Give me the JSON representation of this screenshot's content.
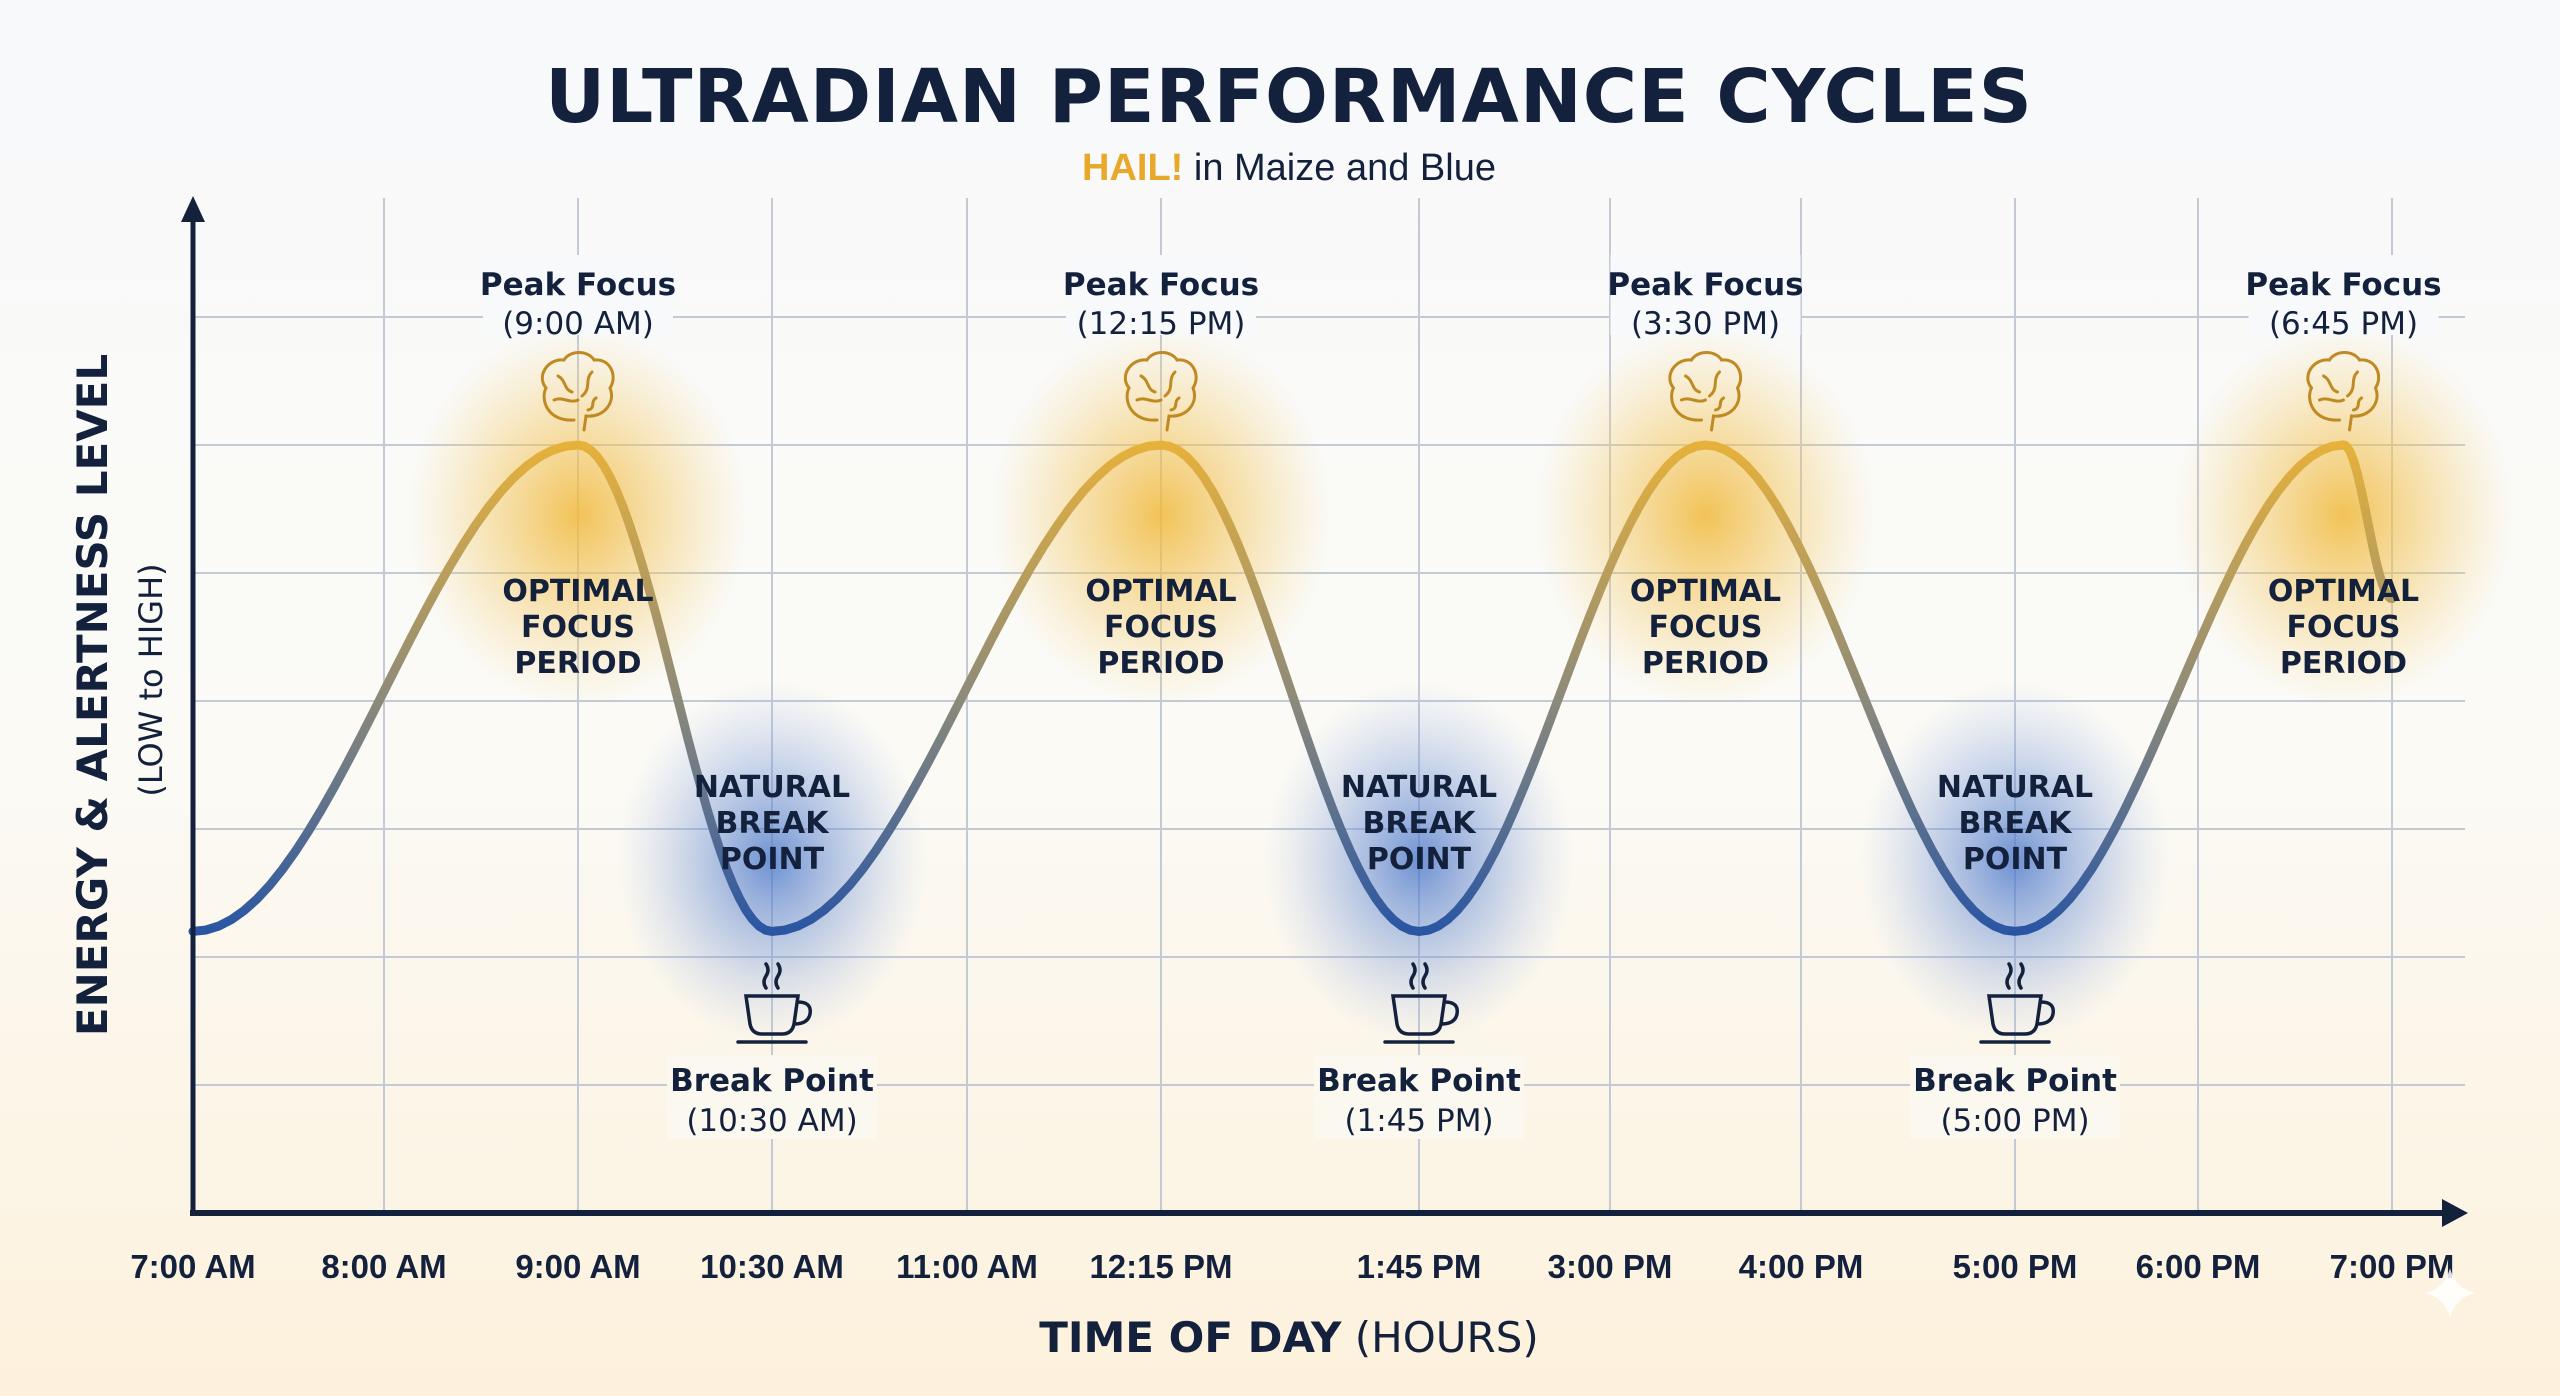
{
  "chart_data": {
    "type": "line",
    "title": "ULTRADIAN PERFORMANCE CYCLES",
    "subtitle": {
      "highlight": "HAIL!",
      "rest": " in Maize and Blue"
    },
    "xlabel": {
      "bold": "TIME OF DAY",
      "rest": " (HOURS)"
    },
    "ylabel": "ENERGY & ALERTNESS LEVEL",
    "ylabel_sub": "(LOW to HIGH)",
    "x_ticks": [
      "7:00 AM",
      "8:00 AM",
      "9:00 AM",
      "10:30 AM",
      "11:00 AM",
      "12:15 PM",
      "1:45 PM",
      "3:00 PM",
      "4:00 PM",
      "5:00 PM",
      "6:00 PM",
      "7:00 PM"
    ],
    "ylim": [
      0,
      8
    ],
    "grid": true,
    "series": [
      {
        "points": [
          {
            "x": "7:00 AM",
            "y": 2.2
          },
          {
            "x": "9:00 AM",
            "y": 6
          },
          {
            "x": "10:30 AM",
            "y": 2.2
          },
          {
            "x": "12:15 PM",
            "y": 6
          },
          {
            "x": "1:45 PM",
            "y": 2.2
          },
          {
            "x": "3:30 PM",
            "y": 6
          },
          {
            "x": "5:00 PM",
            "y": 2.2
          },
          {
            "x": "6:45 PM",
            "y": 6
          },
          {
            "x": "7:00 PM",
            "y": 4.8
          }
        ]
      }
    ],
    "peaks": [
      {
        "label": "Peak Focus",
        "time": "(9:00 AM)",
        "x": "9:00 AM",
        "zone": [
          "OPTIMAL",
          "FOCUS",
          "PERIOD"
        ]
      },
      {
        "label": "Peak Focus",
        "time": "(12:15 PM)",
        "x": "12:15 PM",
        "zone": [
          "OPTIMAL",
          "FOCUS",
          "PERIOD"
        ]
      },
      {
        "label": "Peak Focus",
        "time": "(3:30 PM)",
        "x": "3:30 PM",
        "zone": [
          "OPTIMAL",
          "FOCUS",
          "PERIOD"
        ]
      },
      {
        "label": "Peak Focus",
        "time": "(6:45 PM)",
        "x": "6:45 PM",
        "zone": [
          "OPTIMAL",
          "FOCUS",
          "PERIOD"
        ]
      }
    ],
    "breaks": [
      {
        "label": "Break Point",
        "time": "(10:30 AM)",
        "x": "10:30 AM",
        "zone": [
          "NATURAL",
          "BREAK",
          "POINT"
        ]
      },
      {
        "label": "Break Point",
        "time": "(1:45 PM)",
        "x": "1:45 PM",
        "zone": [
          "NATURAL",
          "BREAK",
          "POINT"
        ]
      },
      {
        "label": "Break Point",
        "time": "(5:00 PM)",
        "x": "5:00 PM",
        "zone": [
          "NATURAL",
          "BREAK",
          "POINT"
        ]
      }
    ],
    "icons": {
      "peak": "brain-icon",
      "break": "coffee-cup-icon"
    },
    "colors": {
      "maize": "#e8b23a",
      "blue": "#1e4fa8",
      "navy": "#14213d",
      "grid": "#c3cad6"
    }
  }
}
